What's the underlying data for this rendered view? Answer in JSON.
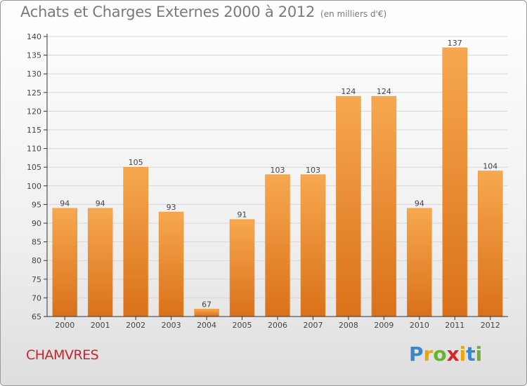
{
  "title": "Achats et Charges Externes 2000 à 2012",
  "subtitle": "(en milliers d'€)",
  "place": "CHAMVRES",
  "logo": {
    "letters": [
      "P",
      "r",
      "o",
      "x",
      "i",
      "t",
      "i"
    ],
    "colors": [
      "#3a86c8",
      "#f0a500",
      "#6ab42d",
      "#d8262e",
      "#f0a500",
      "#3a86c8",
      "#6ab42d"
    ]
  },
  "colors": {
    "bar_top": "#f7a84f",
    "bar_bottom": "#d9711a",
    "axis": "#333333",
    "grid": "#d6d6d6"
  },
  "chart_data": {
    "type": "bar",
    "categories": [
      "2000",
      "2001",
      "2002",
      "2003",
      "2004",
      "2005",
      "2006",
      "2007",
      "2008",
      "2009",
      "2010",
      "2011",
      "2012"
    ],
    "values": [
      94,
      94,
      105,
      93,
      67,
      91,
      103,
      103,
      124,
      124,
      94,
      137,
      104
    ],
    "ylim": [
      65,
      140
    ],
    "yticks": [
      65,
      70,
      75,
      80,
      85,
      90,
      95,
      100,
      105,
      110,
      115,
      120,
      125,
      130,
      135,
      140
    ],
    "grid": true
  }
}
